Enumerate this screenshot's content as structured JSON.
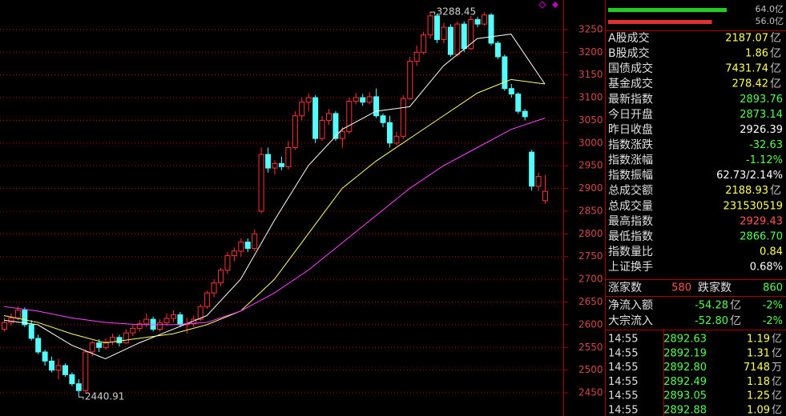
{
  "chart_data": {
    "type": "candlestick",
    "open": [
      2590,
      2605,
      2615,
      2632,
      2600,
      2570,
      2540,
      2520,
      2500,
      2510,
      2490,
      2470,
      2455,
      2540,
      2560,
      2550,
      2562,
      2572,
      2560,
      2582,
      2592,
      2602,
      2612,
      2590,
      2604,
      2614,
      2622,
      2600,
      2602,
      2612,
      2640,
      2670,
      2692,
      2720,
      2752,
      2762,
      2782,
      2768,
      2850,
      2975,
      2945,
      2955,
      2948,
      2990,
      3060,
      3090,
      3100,
      3010,
      3050,
      3065,
      3010,
      3025,
      3092,
      3100,
      3090,
      3102,
      3060,
      3045,
      3000,
      3015,
      3098,
      3180,
      3200,
      3238,
      3280,
      3228,
      3255,
      3195,
      3262,
      3208,
      3272,
      3262,
      3282,
      3220,
      3190,
      3120,
      3108,
      3070,
      2980,
      2905,
      2873.14
    ],
    "high": [
      2615,
      2625,
      2640,
      2638,
      2610,
      2578,
      2545,
      2530,
      2525,
      2515,
      2495,
      2480,
      2545,
      2565,
      2568,
      2570,
      2580,
      2578,
      2590,
      2600,
      2610,
      2625,
      2618,
      2612,
      2625,
      2632,
      2628,
      2615,
      2620,
      2645,
      2675,
      2700,
      2725,
      2760,
      2770,
      2790,
      2790,
      2810,
      2990,
      2990,
      2962,
      2970,
      3005,
      3070,
      3100,
      3110,
      3105,
      3060,
      3075,
      3070,
      3035,
      3100,
      3110,
      3108,
      3112,
      3120,
      3065,
      3060,
      3025,
      3105,
      3190,
      3215,
      3245,
      3288.45,
      3285,
      3265,
      3262,
      3268,
      3268,
      3280,
      3278,
      3288,
      3286,
      3225,
      3195,
      3130,
      3112,
      3075,
      2985,
      2935,
      2929.43
    ],
    "low": [
      2585,
      2598,
      2610,
      2595,
      2565,
      2535,
      2510,
      2495,
      2480,
      2485,
      2465,
      2440.91,
      2450,
      2530,
      2540,
      2545,
      2555,
      2552,
      2558,
      2575,
      2585,
      2595,
      2585,
      2585,
      2598,
      2605,
      2595,
      2580,
      2595,
      2608,
      2635,
      2660,
      2685,
      2712,
      2740,
      2750,
      2760,
      2762,
      2845,
      2935,
      2930,
      2940,
      2942,
      2985,
      3050,
      3070,
      3000,
      3005,
      3040,
      3005,
      2990,
      3020,
      3085,
      3082,
      3085,
      3055,
      3035,
      2990,
      2995,
      3010,
      3095,
      3170,
      3195,
      3230,
      3220,
      3220,
      3190,
      3190,
      3200,
      3205,
      3255,
      3258,
      3215,
      3185,
      3115,
      3100,
      3065,
      3050,
      2895,
      2895,
      2866.7
    ],
    "close": [
      2605,
      2615,
      2632,
      2600,
      2570,
      2540,
      2520,
      2500,
      2510,
      2490,
      2470,
      2455,
      2540,
      2560,
      2550,
      2562,
      2572,
      2560,
      2582,
      2592,
      2602,
      2612,
      2590,
      2604,
      2614,
      2622,
      2600,
      2602,
      2612,
      2640,
      2670,
      2692,
      2720,
      2752,
      2762,
      2782,
      2768,
      2800,
      2975,
      2945,
      2955,
      2948,
      2990,
      3060,
      3090,
      3100,
      3010,
      3050,
      3065,
      3010,
      3025,
      3092,
      3100,
      3090,
      3102,
      3060,
      3045,
      3000,
      3015,
      3098,
      3180,
      3200,
      3238,
      3280,
      3228,
      3255,
      3195,
      3262,
      3208,
      3272,
      3262,
      3282,
      3220,
      3190,
      3120,
      3108,
      3070,
      3058,
      2905,
      2926.39,
      2893.76
    ],
    "up_color": "#ff3232",
    "down_color": "#54fcfc",
    "lines": [
      {
        "color": "#ffffff",
        "x": [
          0,
          5,
          10,
          15,
          20,
          25,
          30,
          35,
          40,
          45,
          50,
          55,
          60,
          65,
          70,
          75,
          80
        ],
        "values": [
          2610,
          2600,
          2555,
          2525,
          2560,
          2590,
          2620,
          2700,
          2830,
          2950,
          3030,
          3070,
          3080,
          3170,
          3230,
          3240,
          3130
        ]
      },
      {
        "color": "#ffff66",
        "x": [
          0,
          5,
          10,
          15,
          20,
          25,
          30,
          35,
          40,
          45,
          50,
          55,
          60,
          65,
          70,
          75,
          80
        ],
        "values": [
          2620,
          2605,
          2580,
          2560,
          2570,
          2580,
          2600,
          2630,
          2700,
          2800,
          2900,
          2960,
          3010,
          3060,
          3110,
          3140,
          3130
        ]
      },
      {
        "color": "#ff44ff",
        "x": [
          0,
          5,
          10,
          15,
          20,
          25,
          30,
          35,
          40,
          45,
          50,
          55,
          60,
          65,
          70,
          75,
          80
        ],
        "values": [
          2640,
          2630,
          2615,
          2605,
          2600,
          2600,
          2605,
          2630,
          2670,
          2720,
          2780,
          2840,
          2900,
          2950,
          2990,
          3030,
          3055
        ]
      }
    ],
    "annotations": [
      {
        "text": "3288.45",
        "candle": 63,
        "at": "high"
      },
      {
        "text": "2440.91",
        "candle": 11,
        "at": "low"
      }
    ],
    "ylim": [
      2399,
      3315
    ],
    "yticks": [
      2450,
      2500,
      2550,
      2600,
      2650,
      2700,
      2750,
      2800,
      2850,
      2900,
      2950,
      3000,
      3050,
      3100,
      3150,
      3200,
      3250
    ],
    "grid": true
  },
  "panel": {
    "bars": [
      {
        "value": 64,
        "label": "64.0亿",
        "color": "#22cc22"
      },
      {
        "value": 56,
        "label": "56.0亿",
        "color": "#e03030"
      }
    ],
    "rows": [
      {
        "label": "A股成交",
        "value": "2187.07",
        "unit": "亿",
        "color": "#ffff54"
      },
      {
        "label": "B股成交",
        "value": "1.86",
        "unit": "亿",
        "color": "#ffff54"
      },
      {
        "label": "国债成交",
        "value": "7431.74",
        "unit": "亿",
        "color": "#ffff54"
      },
      {
        "label": "基金成交",
        "value": "278.42",
        "unit": "亿",
        "color": "#ffff54"
      },
      {
        "label": "最新指数",
        "value": "2893.76",
        "color": "#54fc54"
      },
      {
        "label": "今日开盘",
        "value": "2873.14",
        "color": "#54fc54"
      },
      {
        "label": "昨日收盘",
        "value": "2926.39",
        "color": "#ffffff"
      },
      {
        "label": "指数涨跌",
        "value": "-32.63",
        "color": "#54fc54"
      },
      {
        "label": "指数涨幅",
        "value": "-1.12%",
        "color": "#54fc54"
      },
      {
        "label": "指数振幅",
        "value": "62.73/2.14%",
        "color": "#ffffff"
      },
      {
        "label": "总成交额",
        "value": "2188.93",
        "unit": "亿",
        "color": "#ffff54"
      },
      {
        "label": "总成交量",
        "value": "231530519",
        "color": "#ffff54"
      },
      {
        "label": "最高指数",
        "value": "2929.43",
        "color": "#ff5454"
      },
      {
        "label": "最低指数",
        "value": "2866.70",
        "color": "#54fc54"
      },
      {
        "label": "指数量比",
        "value": "0.84",
        "color": "#ffff54"
      },
      {
        "label": "上证换手",
        "value": "0.68%",
        "color": "#ffffff"
      }
    ],
    "breadth": {
      "up_label": "涨家数",
      "up": "580",
      "down_label": "跌家数",
      "down": "860"
    },
    "flows": [
      {
        "label": "净流入额",
        "value": "-54.28",
        "unit": "亿",
        "pct": "-2%"
      },
      {
        "label": "大宗流入",
        "value": "-52.80",
        "unit": "亿",
        "pct": "-2%"
      }
    ],
    "ticks": [
      {
        "time": "14:55",
        "price": "2892.63",
        "volume": "1.19",
        "unit": "亿"
      },
      {
        "time": "14:55",
        "price": "2892.19",
        "volume": "1.31",
        "unit": "亿"
      },
      {
        "time": "14:55",
        "price": "2892.80",
        "volume": "7148",
        "unit": "万"
      },
      {
        "time": "14:55",
        "price": "2892.49",
        "volume": "1.18",
        "unit": "亿"
      },
      {
        "time": "14:55",
        "price": "2893.05",
        "volume": "1.25",
        "unit": "亿"
      },
      {
        "time": "14:55",
        "price": "2892.88",
        "volume": "1.09",
        "unit": "亿"
      }
    ]
  }
}
